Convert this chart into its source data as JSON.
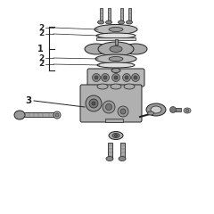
{
  "bg_color": "#ffffff",
  "dark": "#222222",
  "mid": "#888888",
  "light": "#cccccc",
  "lighter": "#e0e0e0",
  "label_fontsize": 6.5,
  "lw_main": 0.7
}
